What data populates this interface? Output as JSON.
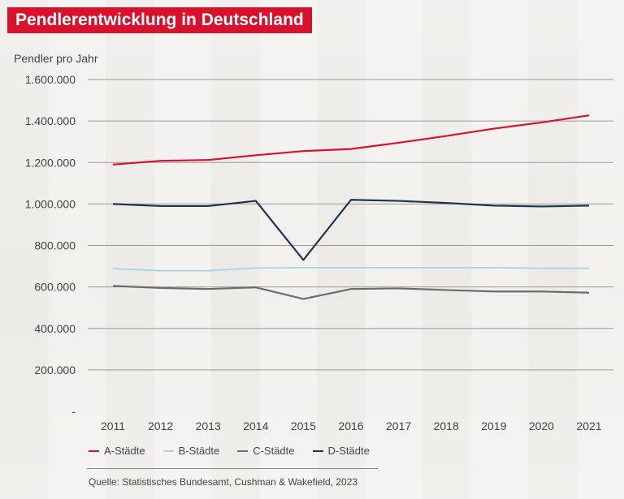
{
  "title": "Pendlerentwicklung in Deutschland",
  "source": "Quelle: Statistisches Bundesamt, Cushman & Wakefield, 2023",
  "chart_data": {
    "type": "line",
    "title": "Pendlerentwicklung in Deutschland",
    "xlabel": "",
    "ylabel": "Pendler pro Jahr",
    "ylim": [
      0,
      1600000
    ],
    "grid": true,
    "legend_position": "bottom-left",
    "y_tick_labels": [
      "-",
      "200.000",
      "400.000",
      "600.000",
      "800.000",
      "1.000.000",
      "1.200.000",
      "1.400.000",
      "1.600.000"
    ],
    "y_tick_values": [
      0,
      200000,
      400000,
      600000,
      800000,
      1000000,
      1200000,
      1400000,
      1600000
    ],
    "categories": [
      "2011",
      "2012",
      "2013",
      "2014",
      "2015",
      "2016",
      "2017",
      "2018",
      "2019",
      "2020",
      "2021"
    ],
    "series": [
      {
        "name": "A-Städte",
        "color": "#d8112c",
        "values": [
          1190000,
          1208000,
          1212000,
          1235000,
          1255000,
          1265000,
          1295000,
          1328000,
          1363000,
          1393000,
          1427000
        ]
      },
      {
        "name": "B-Städte",
        "color": "#a9d3e3",
        "values": [
          688000,
          678000,
          678000,
          692000,
          693000,
          693000,
          693000,
          693000,
          693000,
          690000,
          690000
        ]
      },
      {
        "name": "C-Städte",
        "color": "#6c6c6c",
        "values": [
          605000,
          595000,
          590000,
          598000,
          542000,
          590000,
          593000,
          585000,
          578000,
          578000,
          572000
        ]
      },
      {
        "name": "D-Städte",
        "color": "#1e3550",
        "values": [
          1000000,
          990000,
          990000,
          1015000,
          730000,
          1020000,
          1015000,
          1005000,
          992000,
          988000,
          992000
        ]
      }
    ]
  }
}
